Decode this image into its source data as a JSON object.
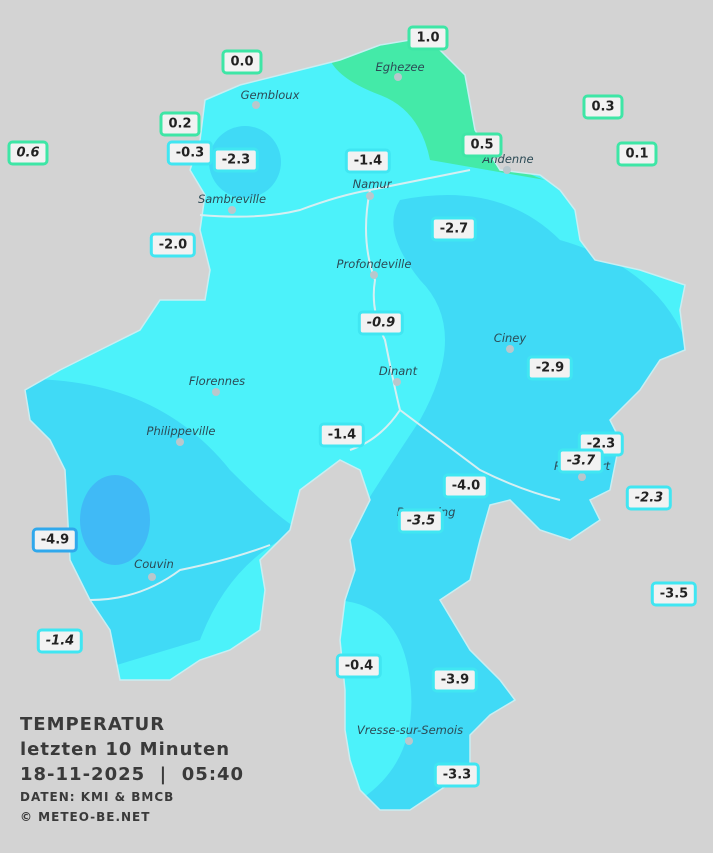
{
  "legend": {
    "title": "TEMPERATUR",
    "period": "letzten 10 Minuten",
    "datetime": "18-11-2025  |  05:40",
    "source": "DATEN: KMI & BMCB",
    "copyright": "© METEO-BE.NET"
  },
  "cities": [
    "Eghezee",
    "Gembloux",
    "Andenne",
    "Namur",
    "Sambreville",
    "Profondeville",
    "Ciney",
    "Dinant",
    "Florennes",
    "Philippeville",
    "Rochefort",
    "Beauraing",
    "Couvin",
    "Vresse-sur-Semois"
  ],
  "readings": [
    "1.0",
    "0.0",
    "0.3",
    "0.2",
    "0.6",
    "-0.3",
    "-2.3",
    "-1.4",
    "0.5",
    "0.1",
    "-2.0",
    "-2.7",
    "-0.9",
    "-2.9",
    "-1.4",
    "-2.3",
    "-3.7",
    "-2.3",
    "-4.0",
    "-3.5",
    "-4.9",
    "-3.5",
    "-1.4",
    "-0.4",
    "-3.9",
    "-3.3"
  ]
}
